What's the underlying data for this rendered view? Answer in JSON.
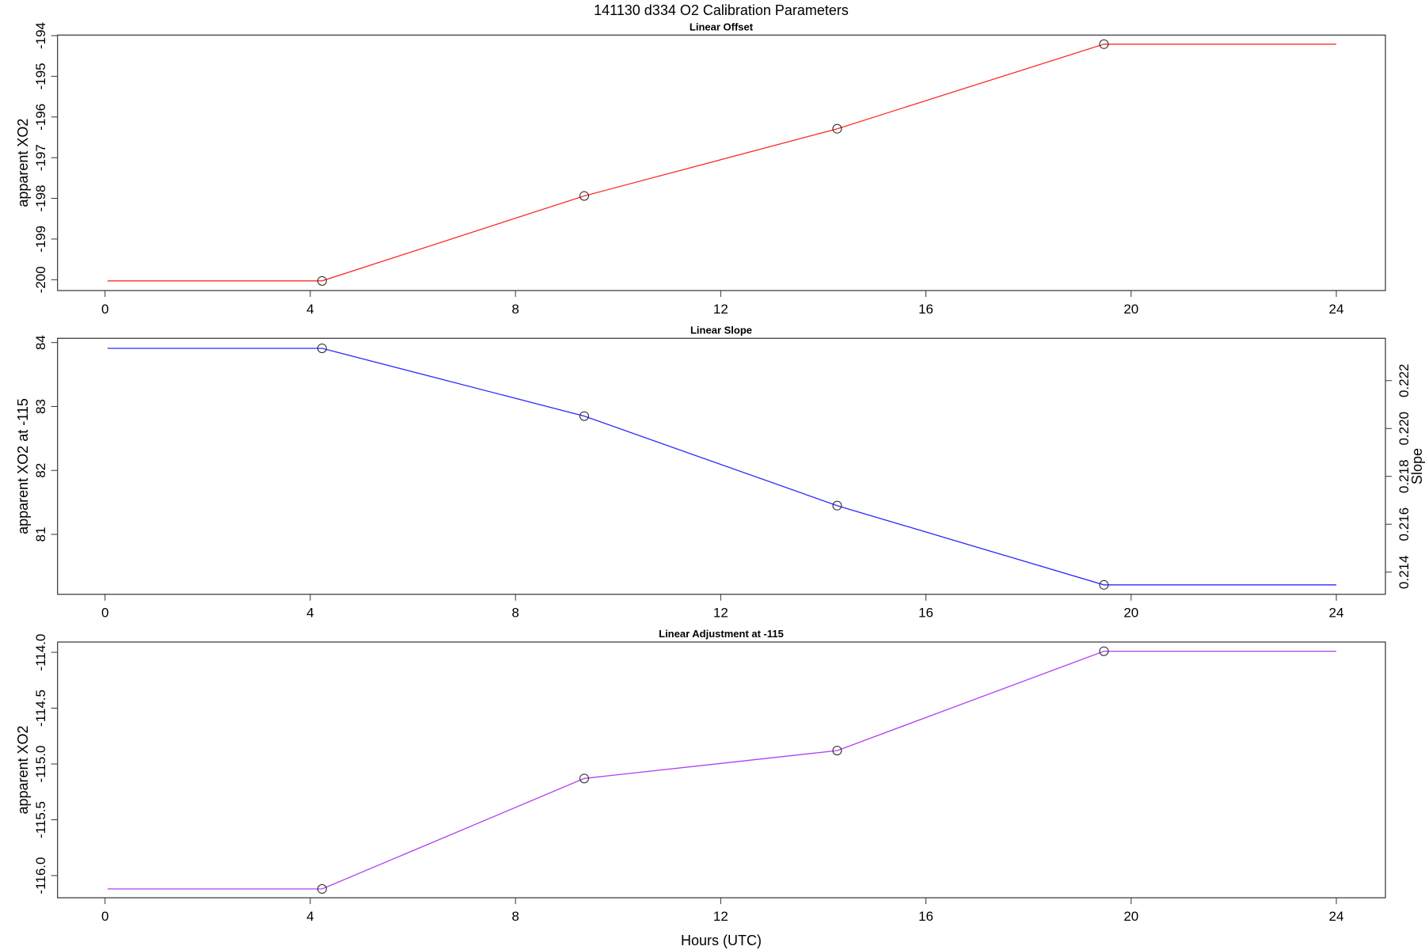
{
  "title": "141130   d334   O2 Calibration Parameters",
  "xlabel": "Hours (UTC)",
  "chart_data": [
    {
      "type": "line",
      "title": "Linear Offset",
      "ylabel": "apparent XO2",
      "xlim": [
        0,
        24
      ],
      "ylim": [
        -200,
        -194
      ],
      "x_ticks": [
        0,
        4,
        8,
        12,
        16,
        20,
        24
      ],
      "y_ticks": [
        -200,
        -199,
        -198,
        -197,
        -196,
        -195,
        -194
      ],
      "y_tick_labels": [
        "-200",
        "-199",
        "-198",
        "-197",
        "-196",
        "-195",
        "-194"
      ],
      "color": "#ff2a2a",
      "points": {
        "x": [
          4.23,
          9.34,
          14.27,
          19.47
        ],
        "y": [
          -200.03,
          -197.94,
          -196.29,
          -194.21
        ]
      },
      "line": {
        "x": [
          0.05,
          4.23,
          9.34,
          14.27,
          19.47,
          24
        ],
        "y": [
          -200.03,
          -200.03,
          -197.94,
          -196.29,
          -194.21,
          -194.21
        ]
      }
    },
    {
      "type": "line",
      "title": "Linear Slope",
      "ylabel": "apparent XO2 at -115",
      "y2label": "Slope",
      "xlim": [
        0,
        24
      ],
      "ylim": [
        80.1,
        84
      ],
      "x_ticks": [
        0,
        4,
        8,
        12,
        16,
        20,
        24
      ],
      "y_ticks": [
        81,
        82,
        83,
        84
      ],
      "y_tick_labels": [
        "81",
        "82",
        "83",
        "84"
      ],
      "y2_ticks": [
        0.214,
        0.216,
        0.218,
        0.22,
        0.222
      ],
      "y2_tick_labels": [
        "0.214",
        "0.216",
        "0.218",
        "0.220",
        "0.222"
      ],
      "y2_at_84": 0.22359,
      "y2_per_unit": 0.002671,
      "color": "#2a2aff",
      "points": {
        "x": [
          4.23,
          9.34,
          14.27,
          19.47
        ],
        "y": [
          83.91,
          82.85,
          81.45,
          80.21
        ]
      },
      "line": {
        "x": [
          0.05,
          4.23,
          9.34,
          14.27,
          19.47,
          24
        ],
        "y": [
          83.91,
          83.91,
          82.85,
          81.45,
          80.21,
          80.21
        ]
      }
    },
    {
      "type": "line",
      "title": "Linear Adjustment at -115",
      "ylabel": "apparent XO2",
      "xlim": [
        0,
        24
      ],
      "ylim": [
        -116.0,
        -114.0
      ],
      "x_ticks": [
        0,
        4,
        8,
        12,
        16,
        20,
        24
      ],
      "y_ticks": [
        -116.0,
        -115.5,
        -115.0,
        -114.5,
        -114.0
      ],
      "y_tick_labels": [
        "-116.0",
        "-115.5",
        "-115.0",
        "-114.5",
        "-114.0"
      ],
      "color": "#b040f0",
      "points": {
        "x": [
          4.23,
          9.34,
          14.27,
          19.47
        ],
        "y": [
          -116.12,
          -115.13,
          -114.88,
          -113.99
        ]
      },
      "line": {
        "x": [
          0.05,
          4.23,
          9.34,
          14.27,
          19.47,
          24
        ],
        "y": [
          -116.12,
          -116.12,
          -115.13,
          -114.88,
          -113.99,
          -113.99
        ]
      }
    }
  ]
}
